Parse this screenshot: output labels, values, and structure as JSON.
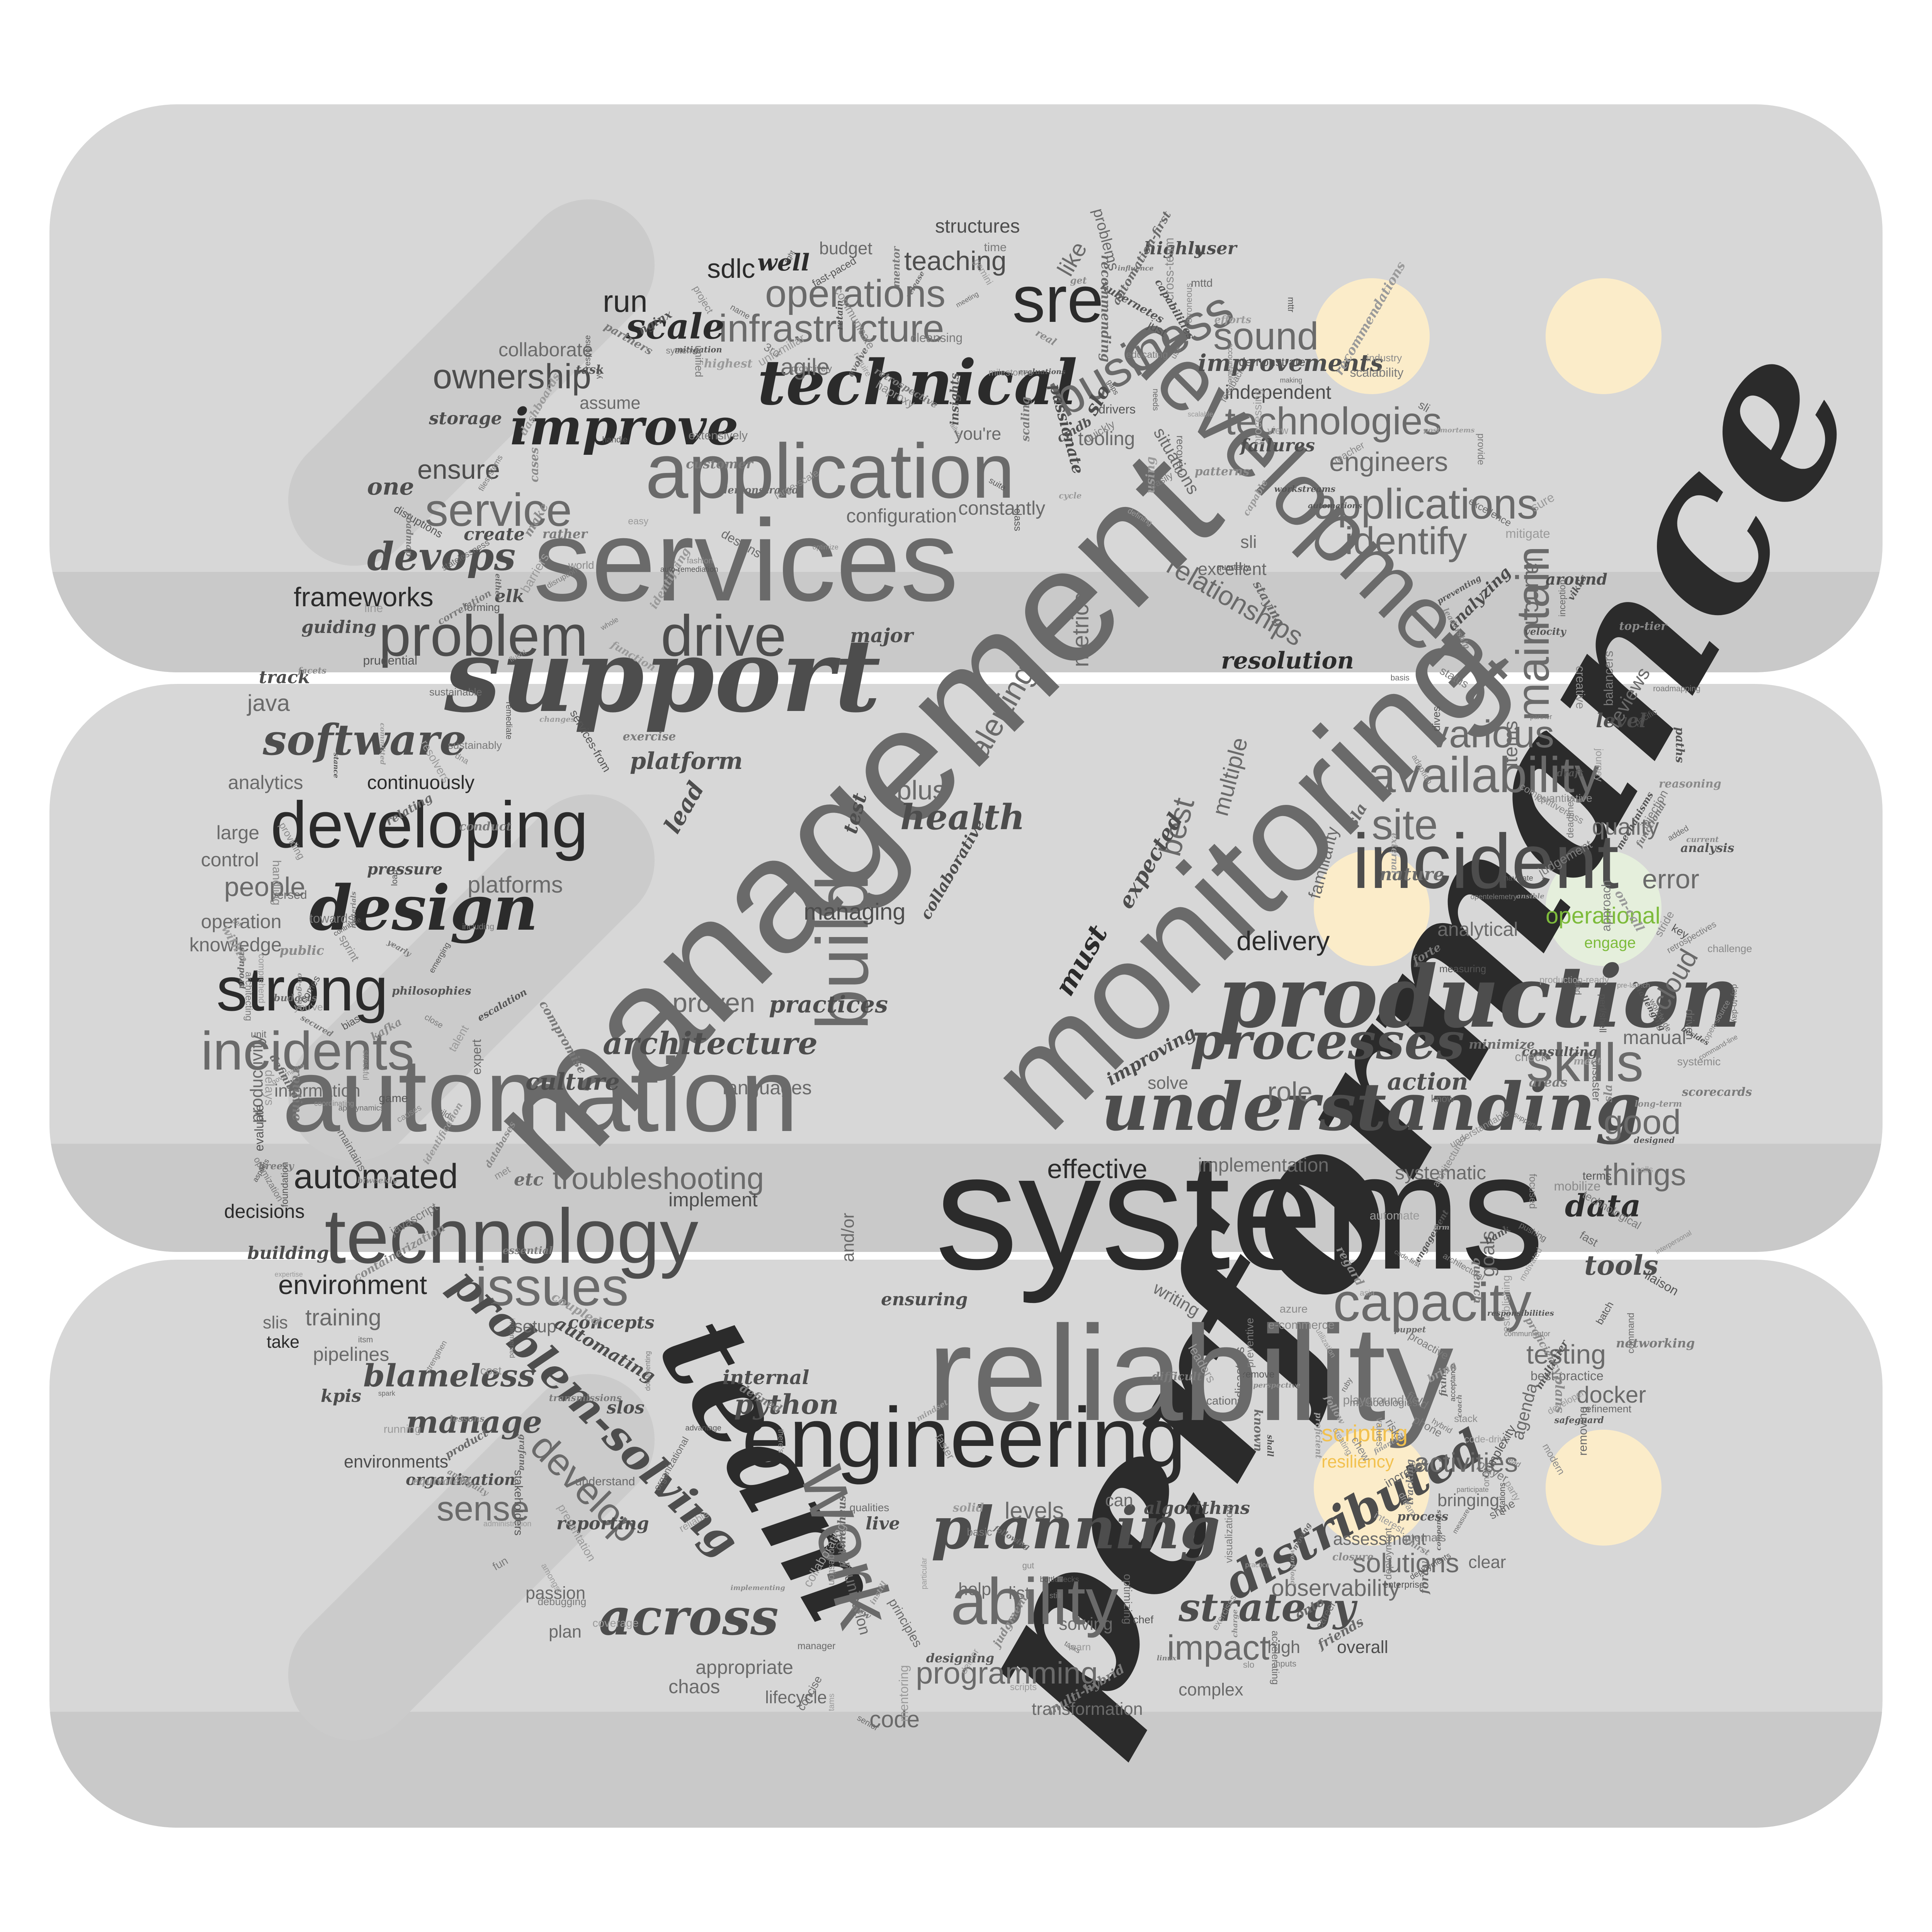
{
  "colors": {
    "slab": "#d7d7d7",
    "slab_shade": "#c9c9c9",
    "accent_yellow": "#f2c14e",
    "accent_green": "#7dbb3b",
    "dark_word": "#2b2b2b",
    "mid_word": "#5a5a5a",
    "light_word": "#8a8a8a",
    "dot_fill": "#fdedc8"
  },
  "icon": "server-stack-icon",
  "words": {
    "performance": "performance",
    "systems": "systems",
    "management": "management",
    "monitoring": "monitoring",
    "reliability": "reliability",
    "services": "services",
    "automation": "automation",
    "development": "development",
    "team": "team",
    "support": "support",
    "production": "production",
    "engineering": "engineering",
    "application": "application",
    "technology": "technology",
    "incident": "incident",
    "understanding": "understanding",
    "developing": "developing",
    "build": "build",
    "work": "work",
    "ability": "ability",
    "availability": "availability",
    "strong": "strong",
    "technical": "technical",
    "design": "design",
    "sre": "sre",
    "problem": "problem",
    "drive": "drive",
    "planning": "planning",
    "capacity": "capacity",
    "incidents": "incidents",
    "processes": "processes",
    "skills": "skills",
    "issues": "issues",
    "across": "across",
    "improve": "improve",
    "infrastructure": "infrastructure",
    "business": "business",
    "operations": "operations",
    "maintain": "maintain",
    "service": "service",
    "software": "software",
    "devops": "devops",
    "applications": "applications",
    "site": "site",
    "technologies": "technologies",
    "identify": "identify",
    "various": "various",
    "sound": "sound",
    "ownership": "ownership",
    "scale": "scale",
    "distributed": "distributed",
    "problem_solving": "problem-solving",
    "architecture": "architecture",
    "automated": "automated",
    "troubleshooting": "troubleshooting",
    "sense": "sense",
    "develop": "develop",
    "strategy": "strategy",
    "programming": "programming",
    "impact": "impact",
    "health": "health",
    "effective": "effective",
    "data": "data",
    "tools": "tools",
    "blameless": "blameless",
    "manage": "manage",
    "python": "python",
    "good": "good",
    "things": "things",
    "testing": "testing",
    "activities": "activities",
    "solutions": "solutions",
    "observability": "observability",
    "docker": "docker",
    "cloud": "cloud",
    "error": "error",
    "quality": "quality",
    "delivery": "delivery",
    "analytical": "analytical",
    "relationships": "relationships",
    "launch": "launch",
    "engineers": "engineers",
    "frameworks": "frameworks",
    "people": "people",
    "java": "java",
    "analytics": "analytics",
    "platforms": "platforms",
    "environment": "environment",
    "training": "training",
    "pipelines": "pipelines",
    "decisions": "decisions",
    "run": "run",
    "sdlc": "sdlc",
    "teaching": "teaching",
    "structures": "structures",
    "agile": "agile",
    "collaborate": "collaborate",
    "tooling": "tooling",
    "improvements": "improvements",
    "independent": "independent",
    "configuration": "configuration",
    "constantly": "constantly",
    "resolution": "resolution",
    "metrics": "metrics",
    "alerting": "alerting",
    "plus": "plus",
    "multiple": "multiple",
    "best": "best",
    "managing": "managing",
    "proven": "proven",
    "practices": "practices",
    "culture": "culture",
    "languages": "languages",
    "implement": "implement",
    "implementation": "implementation",
    "systematic": "systematic",
    "goals": "goals",
    "role": "role",
    "action": "action",
    "manual": "manual",
    "reviews": "reviews",
    "level": "level",
    "items": "items",
    "continuously": "continuously",
    "large": "large",
    "control": "control",
    "operation": "operation",
    "knowledge": "knowledge",
    "information": "information",
    "productivity": "productivity",
    "slis": "slis",
    "take": "take",
    "setup": "setup",
    "concepts": "concepts",
    "automating": "automating",
    "internal": "internal",
    "environments": "environments",
    "organization": "organization",
    "reporting": "reporting",
    "passion": "passion",
    "plan": "plan",
    "appropriate": "appropriate",
    "chaos": "chaos",
    "lifecycle": "lifecycle",
    "code": "code",
    "communication": "communication",
    "transformation": "transformation",
    "complex": "complex",
    "solving": "solving",
    "overall": "overall",
    "high": "high",
    "assessment": "assessment",
    "bringing": "bringing",
    "clear": "clear",
    "agenda": "agenda",
    "writing": "writing",
    "ensuring": "ensuring",
    "levels": "levels",
    "can": "can",
    "algorithms": "algorithms",
    "live": "live",
    "help": "help",
    "list": "list",
    "ensure": "ensure",
    "one": "one",
    "assume": "assume",
    "storage": "storage",
    "create": "create",
    "elk": "elk",
    "major": "major",
    "platform": "platform",
    "lead": "lead",
    "test": "test",
    "must": "must",
    "expected": "expected",
    "collaborative": "collaborative",
    "like": "like",
    "slo": "slo",
    "sli": "sli",
    "excellent": "excellent",
    "situations": "situations",
    "familiarity": "familiarity",
    "nature": "nature",
    "sla": "sla",
    "operational": "operational",
    "engage": "engage",
    "scripting": "scripting",
    "resiliency": "resiliency",
    "well": "well",
    "highly": "highly",
    "user": "user",
    "budget": "budget",
    "you_re": "you're",
    "passionate": "passionate",
    "problems": "problems",
    "failures": "failures",
    "around": "around",
    "analyzing": "analyzing",
    "and_or": "and/or",
    "improving": "improving",
    "solve": "solve",
    "kpis": "kpis",
    "slos": "slos",
    "guiding": "guiding",
    "track": "track",
    "building": "building",
    "etc": "etc",
    "pressure": "pressure"
  },
  "small_words": [
    "secured",
    "command",
    "fashion",
    "committed",
    "hybrid",
    "customer",
    "relating",
    "networking",
    "forming",
    "databases",
    "deadlines",
    "biweekly",
    "mentoring",
    "meeting",
    "optimizing",
    "perl/shell",
    "foundation",
    "leadership",
    "task",
    "automate",
    "escalation",
    "bottlenecks",
    "whole",
    "driven",
    "retain",
    "engagement",
    "javascript",
    "party",
    "optimization",
    "cross-team",
    "met",
    "gemini",
    "mobilize",
    "demonstrated",
    "mechanisms",
    "multi-hybrid",
    "capable",
    "architectural",
    "defined",
    "basis",
    "participate",
    "organizational",
    "sure",
    "quench",
    "instill",
    "capabilities",
    "functional",
    "phone",
    "either",
    "time",
    "preventing",
    "debugging",
    "builds",
    "sustainably",
    "pre-launch",
    "establishing",
    "leaders",
    "facets",
    "rather",
    "mitigation",
    "focused",
    "responsibilities",
    "fixing",
    "maintains",
    "causes",
    "breezy",
    "kubernetes",
    "suite",
    "retrospective",
    "systemic",
    "added",
    "inception",
    "career",
    "communicator",
    "day-to-day",
    "scripts",
    "e-commerce",
    "consulting",
    "tasks",
    "proficiency",
    "quantitative",
    "risks",
    "current",
    "needs",
    "external",
    "scaling",
    "resolvers",
    "highest",
    "appdynamics",
    "following",
    "advantage",
    "multi-tier",
    "industry",
    "velocity",
    "cases",
    "presentation",
    "running",
    "best-practice",
    "drivers",
    "using",
    "coordinating",
    "measure",
    "field",
    "evaluations",
    "implemented",
    "understand",
    "opentelemetry",
    "prudential",
    "sprint",
    "plans",
    "nginx",
    "sustainable",
    "chew",
    "large-scale",
    "dna",
    "developer",
    "disruption",
    "evaluate",
    "ansible",
    "game",
    "manager",
    "real",
    "gut",
    "areas",
    "routine",
    "dives",
    "system/s",
    "safeguard",
    "perl",
    "basic",
    "dashboards",
    "long-term",
    "cleansing",
    "removing",
    "identification",
    "company's",
    "delays",
    "efforts",
    "aspects",
    "recommending",
    "bank",
    "optimize",
    "approach",
    "deliver",
    "staying",
    "regard",
    "amongst",
    "top-tier",
    "interest",
    "documenting",
    "viki's",
    "asia",
    "prometheus",
    "accountable",
    "on-call",
    "creating",
    "world",
    "get",
    "status",
    "administration",
    "compromise",
    "changes",
    "meet",
    "puppet",
    "accelerating",
    "line",
    "easy",
    "3rd",
    "firm",
    "proactive",
    "playground",
    "stressful",
    "talent",
    "governance",
    "use",
    "automation-first",
    "failure",
    "designed",
    "stride",
    "creative",
    "charge",
    "bring",
    "scorecards",
    "designing",
    "enterprise",
    "know",
    "judgment",
    "acceptance",
    "navigate",
    "proficient",
    "key",
    "patterns",
    "analysis",
    "cycle",
    "remediate",
    "proactively",
    "kafka",
    "faster",
    "fun",
    "coach",
    "postmortems",
    "partner",
    "handle",
    "grafana",
    "itsm",
    "stack",
    "easily",
    "mttr",
    "bias",
    "deployment",
    "follow",
    "quickly",
    "essential",
    "transmissions",
    "challenge",
    "correlation",
    "load",
    "code-drive",
    "name",
    "fluent",
    "shall",
    "tight",
    "services-from",
    "complexity",
    "identifying",
    "unit",
    "measuring",
    "close",
    "implementing",
    "gaps",
    "solid",
    "understandable",
    "you've",
    "roadmapping",
    "unfamiliar",
    "player",
    "providing",
    "mindset",
    "yet",
    "terms",
    "milestones",
    "quo",
    "expert",
    "closure",
    "budgets",
    "making",
    "definition",
    "educating",
    "code-first",
    "fast-paced",
    "production-ready",
    "principles",
    "provide",
    "rotations",
    "stakeholders",
    "pacific",
    "moving",
    "equivalent",
    "balancers",
    "shine",
    "there's",
    "view",
    "find",
    "known",
    "auto-remediation",
    "just",
    "adoption",
    "product",
    "comprehend",
    "disruptions",
    "supported",
    "azure",
    "linux",
    "statelessness",
    "designs",
    "require",
    "refinement",
    "utilization",
    "remove",
    "philosophies",
    "products",
    "comes",
    "processing",
    "erroneous",
    "class",
    "technological",
    "challenging",
    "draft",
    "chef",
    "ruby",
    "calls",
    "new",
    "onto",
    "interpersonal",
    "particular",
    "methodologies",
    "forte",
    "locations",
    "worldwide",
    "quarterly",
    "retrospectives",
    "mttd",
    "exercise",
    "haproxy",
    "emerging",
    "tams",
    "ambiguity",
    "values",
    "excellence",
    "competitiveness",
    "extensively",
    "cost",
    "containerization",
    "financial",
    "recommendations",
    "scalability",
    "yearly",
    "workload",
    "disasters",
    "defining",
    "expertise",
    "coupled",
    "besides",
    "barriers",
    "conduct",
    "increase",
    "communicate",
    "function",
    "difficult",
    "mentor",
    "roadmap",
    "tracking",
    "response",
    "public",
    "command-line",
    "within",
    "reliable",
    "recovery",
    "senior",
    "liaison",
    "contribute",
    "reasoning",
    "evolve",
    "dream",
    "stance",
    "concise",
    "unified",
    "pushing",
    "cmdb",
    "process",
    "architecting",
    "practice",
    "towards",
    "teacher",
    "on-going",
    "scalable",
    "modern",
    "release",
    "minimize",
    "ingestion",
    "mitigate",
    "internals",
    "lessons",
    "injection",
    "visualization",
    "spark",
    "journey",
    "thirst",
    "coverage",
    "automations",
    "check",
    "inputs",
    "partners",
    "feedback",
    "paths",
    "strengthen",
    "versed",
    "filesystems",
    "architectures",
    "deployments",
    "learn",
    "make",
    "project",
    "insights",
    "read",
    "foray",
    "friends",
    "including",
    "handling",
    "materials",
    "workstreams",
    "demonstrate",
    "influence",
    "motivated",
    "disaster",
    "judgement",
    "still",
    "preventive",
    "fast",
    "collaborating",
    "exercises",
    "batch",
    "qualities",
    "perspective",
    "open-source",
    "slo",
    "sla",
    "sli"
  ]
}
